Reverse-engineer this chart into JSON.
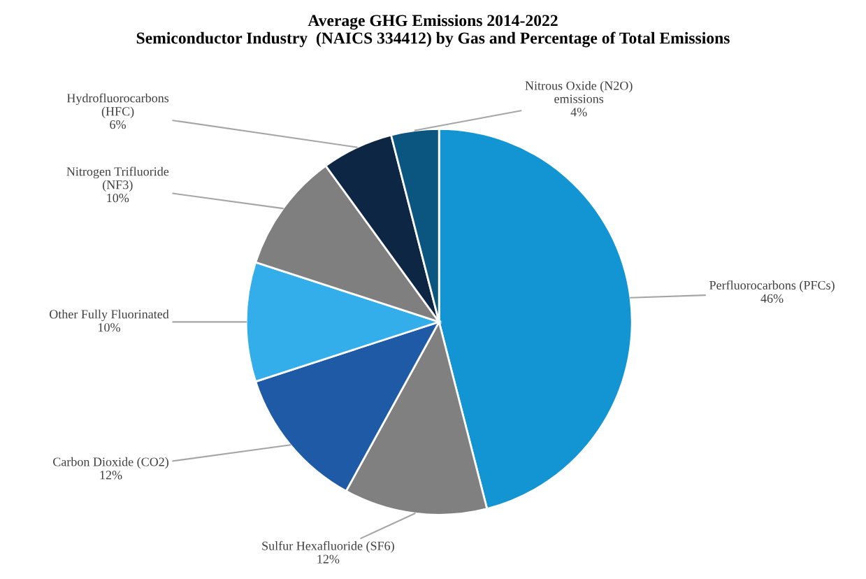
{
  "chart_data": {
    "type": "pie",
    "title": "Average GHG Emissions 2014-2022\nSemiconductor Industry  (NAICS 334412) by Gas and Percentage of Total Emissions",
    "categories": [
      "Perfluorocarbons (PFCs)",
      "Sulfur Hexafluoride (SF6)",
      "Carbon Dioxide (CO2)",
      "Other Fully Fluorinated",
      "Nitrogen Trifluoride\n(NF3)",
      "Hydrofluorocarbons\n(HFC)",
      "Nitrous Oxide (N2O)\nemissions"
    ],
    "values": [
      46,
      12,
      12,
      10,
      10,
      6,
      4
    ],
    "value_labels": [
      "46%",
      "12%",
      "12%",
      "10%",
      "10%",
      "6%",
      "4%"
    ],
    "colors": [
      "#1395d3",
      "#808080",
      "#1f5aa6",
      "#33aeea",
      "#7f7f7f",
      "#0d2644",
      "#0b5680"
    ],
    "legend": false
  }
}
